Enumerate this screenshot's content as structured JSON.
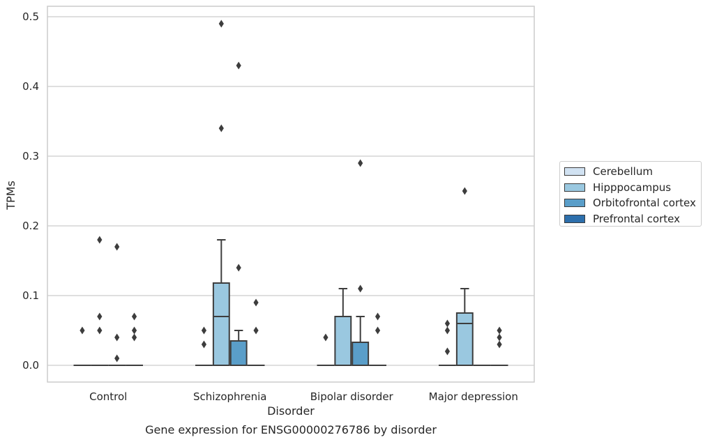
{
  "chart_data": {
    "type": "box",
    "title": "Gene expression for ENSG00000276786 by disorder",
    "xlabel": "Disorder",
    "ylabel": "TPMs",
    "ylim": [
      -0.024,
      0.515
    ],
    "yticks": [
      "0.0",
      "0.1",
      "0.2",
      "0.3",
      "0.4",
      "0.5"
    ],
    "grid": true,
    "legend_position": "right",
    "categories": [
      "Control",
      "Schizophrenia",
      "Bipolar disorder",
      "Major depression"
    ],
    "series": [
      {
        "name": "Cerebellum",
        "color": "#d1e2f2",
        "boxes": [
          {
            "q1": 0,
            "median": 0,
            "q3": 0,
            "whisker_low": 0,
            "whisker_high": 0,
            "outliers": [
              0.05
            ]
          },
          {
            "q1": 0,
            "median": 0,
            "q3": 0,
            "whisker_low": 0,
            "whisker_high": 0,
            "outliers": [
              0.03,
              0.05
            ]
          },
          {
            "q1": 0,
            "median": 0,
            "q3": 0,
            "whisker_low": 0,
            "whisker_high": 0,
            "outliers": [
              0.04
            ]
          },
          {
            "q1": 0,
            "median": 0,
            "q3": 0,
            "whisker_low": 0,
            "whisker_high": 0,
            "outliers": [
              0.02,
              0.05,
              0.06
            ]
          }
        ]
      },
      {
        "name": "Hipppocampus",
        "color": "#9ac8e0",
        "boxes": [
          {
            "q1": 0,
            "median": 0,
            "q3": 0,
            "whisker_low": 0,
            "whisker_high": 0,
            "outliers": [
              0.05,
              0.07,
              0.18
            ]
          },
          {
            "q1": 0,
            "median": 0.07,
            "q3": 0.118,
            "whisker_low": 0,
            "whisker_high": 0.18,
            "outliers": [
              0.34,
              0.49
            ]
          },
          {
            "q1": 0,
            "median": 0,
            "q3": 0.07,
            "whisker_low": 0,
            "whisker_high": 0.11,
            "outliers": []
          },
          {
            "q1": 0,
            "median": 0.06,
            "q3": 0.075,
            "whisker_low": 0,
            "whisker_high": 0.11,
            "outliers": [
              0.25
            ]
          }
        ]
      },
      {
        "name": "Orbitofrontal cortex",
        "color": "#5a9ec9",
        "boxes": [
          {
            "q1": 0,
            "median": 0,
            "q3": 0,
            "whisker_low": 0,
            "whisker_high": 0,
            "outliers": [
              0.01,
              0.04,
              0.17
            ]
          },
          {
            "q1": 0,
            "median": 0,
            "q3": 0.035,
            "whisker_low": 0,
            "whisker_high": 0.05,
            "outliers": [
              0.14,
              0.43
            ]
          },
          {
            "q1": 0,
            "median": 0,
            "q3": 0.033,
            "whisker_low": 0,
            "whisker_high": 0.07,
            "outliers": [
              0.11,
              0.29
            ]
          },
          {
            "q1": 0,
            "median": 0,
            "q3": 0,
            "whisker_low": 0,
            "whisker_high": 0,
            "outliers": []
          }
        ]
      },
      {
        "name": "Prefrontal cortex",
        "color": "#2d6fac",
        "boxes": [
          {
            "q1": 0,
            "median": 0,
            "q3": 0,
            "whisker_low": 0,
            "whisker_high": 0,
            "outliers": [
              0.04,
              0.05,
              0.07
            ]
          },
          {
            "q1": 0,
            "median": 0,
            "q3": 0,
            "whisker_low": 0,
            "whisker_high": 0,
            "outliers": [
              0.05,
              0.09
            ]
          },
          {
            "q1": 0,
            "median": 0,
            "q3": 0,
            "whisker_low": 0,
            "whisker_high": 0,
            "outliers": [
              0.05,
              0.07
            ]
          },
          {
            "q1": 0,
            "median": 0,
            "q3": 0,
            "whisker_low": 0,
            "whisker_high": 0,
            "outliers": [
              0.03,
              0.04,
              0.05
            ]
          }
        ]
      }
    ]
  }
}
